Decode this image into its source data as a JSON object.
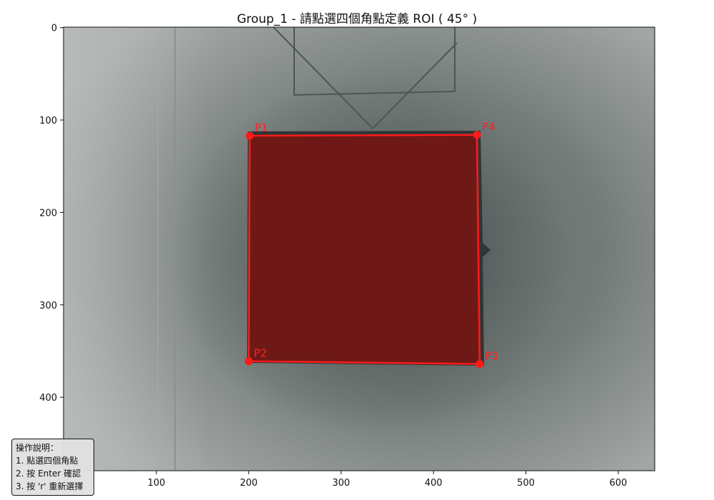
{
  "title": "Group_1 - 請點選四個角點定義 ROI ( 45° )",
  "axes": {
    "x_ticks": [
      100,
      200,
      300,
      400,
      500,
      600
    ],
    "y_ticks": [
      0,
      100,
      200,
      300,
      400
    ],
    "xlim": [
      -0.5,
      639.5
    ],
    "ylim": [
      479.5,
      -0.5
    ]
  },
  "image": {
    "width": 640,
    "height": 480
  },
  "roi": {
    "color": "#ff1a1a",
    "fill_color": "#7a1410",
    "points": [
      {
        "label": "P1",
        "x": 201,
        "y": 117
      },
      {
        "label": "P2",
        "x": 200,
        "y": 361
      },
      {
        "label": "P3",
        "x": 450,
        "y": 364
      },
      {
        "label": "P4",
        "x": 447,
        "y": 116
      }
    ]
  },
  "help": {
    "lines": [
      "操作說明：",
      "1. 點選四個角點",
      "2. 按 Enter 確認",
      "3. 按 'r' 重新選擇"
    ]
  }
}
